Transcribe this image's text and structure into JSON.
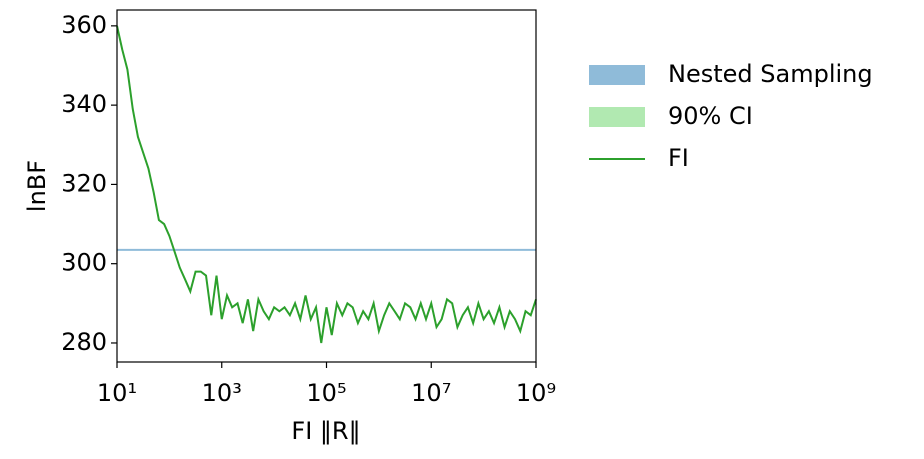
{
  "chart_data": {
    "type": "line",
    "xlabel": "FI ‖R‖",
    "ylabel": "lnBF",
    "xscale": "log",
    "xlim": [
      10,
      1000000000.0
    ],
    "ylim": [
      275.2,
      364
    ],
    "xticks": [
      {
        "value": 10,
        "label": "10¹"
      },
      {
        "value": 1000,
        "label": "10³"
      },
      {
        "value": 100000,
        "label": "10⁵"
      },
      {
        "value": 10000000,
        "label": "10⁷"
      },
      {
        "value": 1000000000,
        "label": "10⁹"
      }
    ],
    "yticks": [
      280,
      300,
      320,
      340,
      360
    ],
    "legend": "upper-right-outside",
    "series": [
      {
        "name": "Nested Sampling",
        "color": "#1f77b4",
        "kind": "hline",
        "values": [
          303.5
        ]
      },
      {
        "name": "90% CI",
        "color": "#90e090",
        "kind": "band",
        "values": []
      },
      {
        "name": "FI",
        "color": "#2ca02c",
        "kind": "line",
        "x": [
          10.0,
          12.6,
          15.8,
          20.0,
          25.1,
          31.6,
          39.8,
          50.1,
          63.1,
          79.4,
          100.0,
          126.0,
          158.0,
          200.0,
          251.0,
          316.0,
          398.0,
          501.0,
          631.0,
          794.0,
          1000.0,
          1260.0,
          1580.0,
          2000.0,
          2510.0,
          3160.0,
          3980.0,
          5010.0,
          6310.0,
          7940.0,
          10000.0,
          12600.0,
          15800.0,
          20000.0,
          25100.0,
          31600.0,
          39800.0,
          50100.0,
          63100.0,
          79400.0,
          100000.0,
          126000.0,
          158000.0,
          200000.0,
          251000.0,
          316000.0,
          398000.0,
          501000.0,
          631000.0,
          794000.0,
          1000000.0,
          1260000.0,
          1580000.0,
          2000000.0,
          2510000.0,
          3160000.0,
          3980000.0,
          5010000.0,
          6310000.0,
          7940000.0,
          10000000.0,
          12600000.0,
          15800000.0,
          20000000.0,
          25100000.0,
          31600000.0,
          39800000.0,
          50100000.0,
          63100000.0,
          79400000.0,
          100000000.0,
          126000000.0,
          158000000.0,
          200000000.0,
          251000000.0,
          316000000.0,
          398000000.0,
          501000000.0,
          631000000.0,
          794000000.0,
          1000000000.0
        ],
        "values": [
          360,
          354,
          349,
          339,
          332,
          328,
          324,
          318,
          311,
          310,
          307,
          303,
          299,
          296,
          293,
          298,
          298,
          297,
          287,
          297,
          286,
          292,
          289,
          290,
          285,
          291,
          283,
          291,
          288,
          286,
          289,
          288,
          289,
          287,
          290,
          286,
          292,
          286,
          289,
          280,
          289,
          282,
          290,
          287,
          290,
          289,
          285,
          288,
          286,
          290,
          283,
          287,
          290,
          288,
          286,
          290,
          289,
          286,
          290,
          286,
          290,
          284,
          286,
          291,
          290,
          284,
          287,
          289,
          285,
          290,
          286,
          288,
          285,
          289,
          284,
          288,
          286,
          283,
          288,
          287,
          291
        ]
      }
    ]
  }
}
